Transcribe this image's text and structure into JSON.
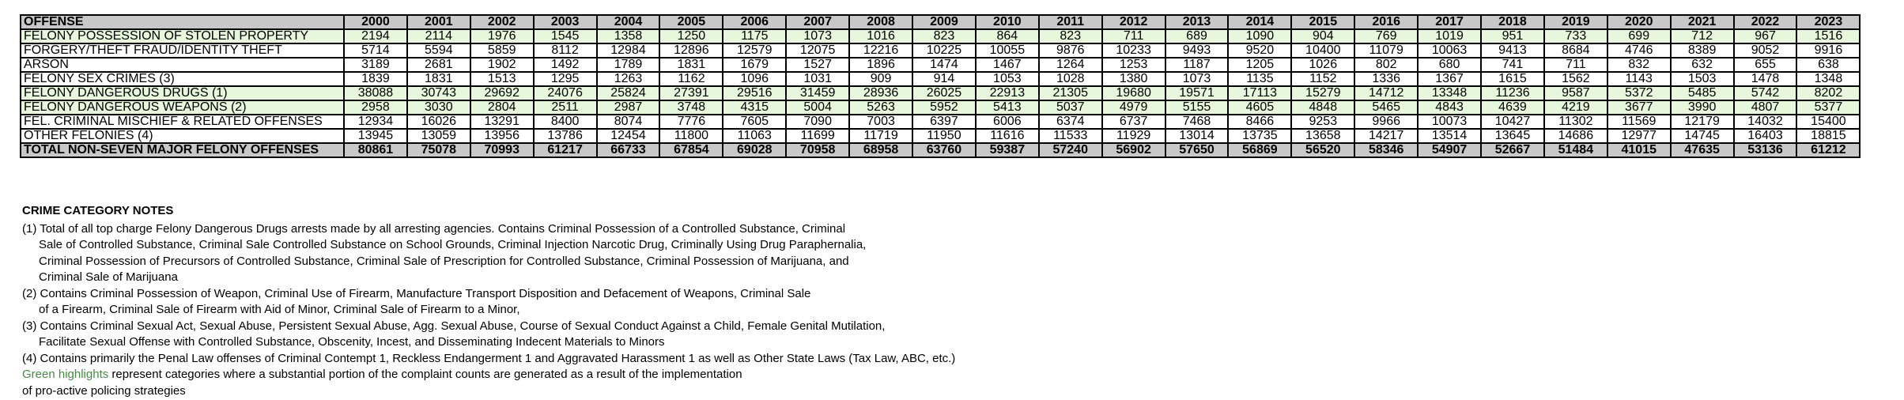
{
  "table": {
    "header": [
      "OFFENSE",
      "2000",
      "2001",
      "2002",
      "2003",
      "2004",
      "2005",
      "2006",
      "2007",
      "2008",
      "2009",
      "2010",
      "2011",
      "2012",
      "2013",
      "2014",
      "2015",
      "2016",
      "2017",
      "2018",
      "2019",
      "2020",
      "2021",
      "2022",
      "2023"
    ],
    "rows": [
      {
        "label": "FELONY POSSESSION OF STOLEN PROPERTY",
        "highlight": true,
        "total": false,
        "values": [
          "2194",
          "2114",
          "1976",
          "1545",
          "1358",
          "1250",
          "1175",
          "1073",
          "1016",
          "823",
          "864",
          "823",
          "711",
          "689",
          "1090",
          "904",
          "769",
          "1019",
          "951",
          "733",
          "699",
          "712",
          "967",
          "1516"
        ]
      },
      {
        "label": "FORGERY/THEFT  FRAUD/IDENTITY THEFT",
        "highlight": false,
        "total": false,
        "values": [
          "5714",
          "5594",
          "5859",
          "8112",
          "12984",
          "12896",
          "12579",
          "12075",
          "12216",
          "10225",
          "10055",
          "9876",
          "10233",
          "9493",
          "9520",
          "10400",
          "11079",
          "10063",
          "9413",
          "8684",
          "4746",
          "8389",
          "9052",
          "9916"
        ]
      },
      {
        "label": "ARSON",
        "highlight": false,
        "total": false,
        "values": [
          "3189",
          "2681",
          "1902",
          "1492",
          "1789",
          "1831",
          "1679",
          "1527",
          "1896",
          "1474",
          "1467",
          "1264",
          "1253",
          "1187",
          "1205",
          "1026",
          "802",
          "680",
          "741",
          "711",
          "832",
          "632",
          "655",
          "638"
        ]
      },
      {
        "label": "FELONY SEX CRIMES (3)",
        "highlight": false,
        "total": false,
        "values": [
          "1839",
          "1831",
          "1513",
          "1295",
          "1263",
          "1162",
          "1096",
          "1031",
          "909",
          "914",
          "1053",
          "1028",
          "1380",
          "1073",
          "1135",
          "1152",
          "1336",
          "1367",
          "1615",
          "1562",
          "1143",
          "1503",
          "1478",
          "1348"
        ]
      },
      {
        "label": "FELONY DANGEROUS DRUGS (1)",
        "highlight": true,
        "total": false,
        "values": [
          "38088",
          "30743",
          "29692",
          "24076",
          "25824",
          "27391",
          "29516",
          "31459",
          "28936",
          "26025",
          "22913",
          "21305",
          "19680",
          "19571",
          "17113",
          "15279",
          "14712",
          "13348",
          "11236",
          "9587",
          "5372",
          "5485",
          "5742",
          "8202"
        ]
      },
      {
        "label": "FELONY DANGEROUS WEAPONS (2)",
        "highlight": true,
        "total": false,
        "values": [
          "2958",
          "3030",
          "2804",
          "2511",
          "2987",
          "3748",
          "4315",
          "5004",
          "5263",
          "5952",
          "5413",
          "5037",
          "4979",
          "5155",
          "4605",
          "4848",
          "5465",
          "4843",
          "4639",
          "4219",
          "3677",
          "3990",
          "4807",
          "5377"
        ]
      },
      {
        "label": "FEL. CRIMINAL MISCHIEF & RELATED OFFENSES",
        "highlight": false,
        "total": false,
        "values": [
          "12934",
          "16026",
          "13291",
          "8400",
          "8074",
          "7776",
          "7605",
          "7090",
          "7003",
          "6397",
          "6006",
          "6374",
          "6737",
          "7468",
          "8466",
          "9253",
          "9966",
          "10073",
          "10427",
          "11302",
          "11569",
          "12179",
          "14032",
          "15400"
        ]
      },
      {
        "label": "OTHER FELONIES (4)",
        "highlight": false,
        "total": false,
        "values": [
          "13945",
          "13059",
          "13956",
          "13786",
          "12454",
          "11800",
          "11063",
          "11699",
          "11719",
          "11950",
          "11616",
          "11533",
          "11929",
          "13014",
          "13735",
          "13658",
          "14217",
          "13514",
          "13645",
          "14686",
          "12977",
          "14745",
          "16403",
          "18815"
        ]
      },
      {
        "label": "TOTAL NON-SEVEN MAJOR FELONY OFFENSES",
        "highlight": false,
        "total": true,
        "values": [
          "80861",
          "75078",
          "70993",
          "61217",
          "66733",
          "67854",
          "69028",
          "70958",
          "68958",
          "63760",
          "59387",
          "57240",
          "56902",
          "57650",
          "56869",
          "56520",
          "58346",
          "54907",
          "52667",
          "51484",
          "41015",
          "47635",
          "53136",
          "61212"
        ]
      }
    ]
  },
  "notes": {
    "title": "CRIME CATEGORY NOTES",
    "lines": [
      {
        "text": "(1) Total of all top charge Felony Dangerous Drugs arrests made by all arresting agencies.  Contains Criminal Possession of a Controlled Substance, Criminal",
        "indent": false
      },
      {
        "text": "Sale of Controlled Substance, Criminal Sale Controlled Substance on School Grounds, Criminal Injection Narcotic Drug, Criminally Using Drug Paraphernalia,",
        "indent": true
      },
      {
        "text": "Criminal Possession of Precursors of Controlled Substance, Criminal Sale of Prescription for Controlled Substance, Criminal Possession of Marijuana, and",
        "indent": true
      },
      {
        "text": "Criminal Sale of Marijuana",
        "indent": true
      },
      {
        "text": "(2) Contains Criminal Possession of Weapon, Criminal Use of Firearm, Manufacture Transport Disposition and Defacement of Weapons, Criminal Sale",
        "indent": false
      },
      {
        "text": "of a Firearm, Criminal Sale of Firearm with Aid of Minor, Criminal Sale of Firearm to a Minor,",
        "indent": true
      },
      {
        "text": "(3) Contains Criminal Sexual Act, Sexual Abuse, Persistent Sexual Abuse, Agg. Sexual Abuse, Course of Sexual Conduct Against a Child, Female Genital Mutilation,",
        "indent": false
      },
      {
        "text": "Facilitate Sexual Offense with Controlled Substance, Obscenity, Incest, and Disseminating Indecent Materials to Minors",
        "indent": true
      },
      {
        "text": "(4) Contains primarily the Penal Law offenses of Criminal Contempt 1, Reckless Endangerment 1 and Aggravated Harassment 1 as well as Other State Laws (Tax Law, ABC, etc.)",
        "indent": false
      }
    ],
    "green_label": "Green highlights",
    "green_rest": " represent categories where a substantial portion of the complaint counts are generated as a result of the implementation",
    "last_line": "of pro-active policing strategies"
  },
  "colors": {
    "highlight_row": "#e6f7dc",
    "header_bg": "#c8c8c8",
    "green_text": "#3f8f3f"
  }
}
